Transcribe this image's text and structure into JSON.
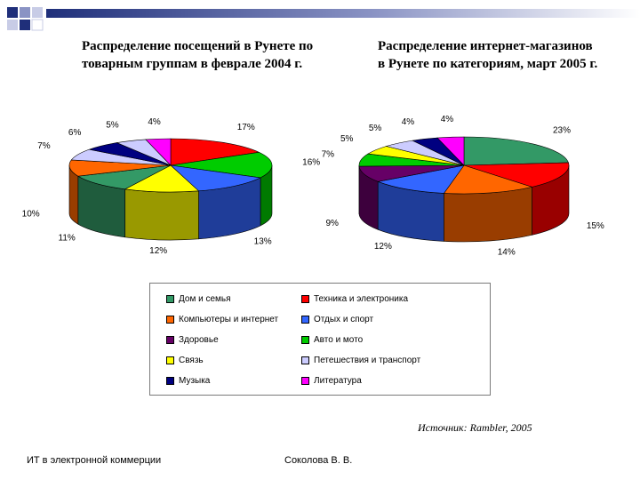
{
  "slide": {
    "footer_left": "ИТ в электронной коммерции",
    "footer_center": "Соколова В. В.",
    "source": "Источник: Rambler, 2005"
  },
  "legend": [
    {
      "label": "Дом и семья",
      "color": "#339966"
    },
    {
      "label": "Техника и электроника",
      "color": "#ff0000"
    },
    {
      "label": "Компьютеры и интернет",
      "color": "#ff6600"
    },
    {
      "label": "Отдых и спорт",
      "color": "#3366ff"
    },
    {
      "label": "Здоровье",
      "color": "#660066"
    },
    {
      "label": "Авто и мото",
      "color": "#00cc00"
    },
    {
      "label": "Связь",
      "color": "#ffff00"
    },
    {
      "label": "Петешествия и транспорт",
      "color": "#ccccff"
    },
    {
      "label": "Музыка",
      "color": "#000080"
    },
    {
      "label": "Литература",
      "color": "#ff00ff"
    }
  ],
  "chart_data": [
    {
      "type": "pie",
      "title": "Распределение посещений  в Рунете по\nтоварным группам в феврале 2004 г.",
      "slices": [
        {
          "category": "Техника и электроника",
          "value": 17,
          "label": "17%"
        },
        {
          "category": "Авто и мото",
          "value": 16,
          "label": "16%"
        },
        {
          "category": "Отдых и спорт",
          "value": 13,
          "label": "13%"
        },
        {
          "category": "Связь",
          "value": 12,
          "label": "12%"
        },
        {
          "category": "Дом и семья",
          "value": 11,
          "label": "11%"
        },
        {
          "category": "Компьютеры и интернет",
          "value": 10,
          "label": "10%"
        },
        {
          "category": "Петешествия и транспорт",
          "value": 7,
          "label": "7%"
        },
        {
          "category": "Музыка",
          "value": 6,
          "label": "6%"
        },
        {
          "category": "Петешествия и транспорт",
          "value": 5,
          "label": "5%"
        },
        {
          "category": "Литература",
          "value": 4,
          "label": "4%"
        }
      ]
    },
    {
      "type": "pie",
      "title": "Распределение интернет-магазинов\nв Рунете по категориям, март 2005 г.",
      "slices": [
        {
          "category": "Дом и семья",
          "value": 23,
          "label": "23%"
        },
        {
          "category": "Техника и электроника",
          "value": 15,
          "label": "15%"
        },
        {
          "category": "Компьютеры и интернет",
          "value": 14,
          "label": "14%"
        },
        {
          "category": "Отдых и спорт",
          "value": 12,
          "label": "12%"
        },
        {
          "category": "Здоровье",
          "value": 9,
          "label": "9%"
        },
        {
          "category": "Авто и мото",
          "value": 7,
          "label": "7%"
        },
        {
          "category": "Связь",
          "value": 5,
          "label": "5%"
        },
        {
          "category": "Петешествия и транспорт",
          "value": 5,
          "label": "5%"
        },
        {
          "category": "Музыка",
          "value": 4,
          "label": "4%"
        },
        {
          "category": "Литература",
          "value": 4,
          "label": "4%"
        }
      ]
    }
  ]
}
